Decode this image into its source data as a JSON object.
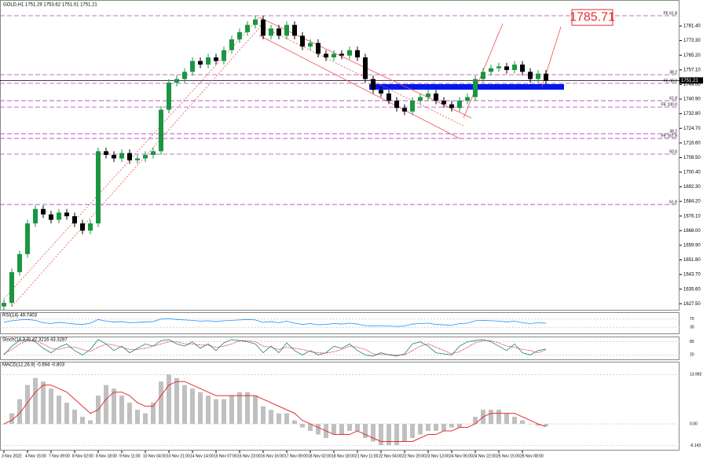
{
  "chart_data": {
    "type": "candlestick",
    "title": "GOLD,H1 1751.29 1753.62 1751.01 1751.21",
    "categories": [
      "3 Nov 2022",
      null,
      null,
      "4 Nov 15:00",
      null,
      null,
      "7 Nov 09:00",
      null,
      null,
      "8 Nov 02:00",
      null,
      null,
      "8 Nov 18:00",
      null,
      null,
      "9 Nov 11:00",
      null,
      null,
      "10 Nov 04:00",
      null,
      null,
      "10 Nov 21:00",
      null,
      null,
      "14 Nov 14:00",
      null,
      null,
      "15 Nov 07:00",
      null,
      null,
      "15 Nov 23:00",
      null,
      null,
      "16 Nov 16:00",
      null,
      null,
      "17 Nov 09:00",
      null,
      null,
      "18 Nov 02:00",
      null,
      null,
      "18 Nov 18:00",
      null,
      null,
      "21 Nov 11:00",
      null,
      null,
      "22 Nov 04:00",
      null,
      null,
      "22 Nov 20:00",
      null,
      null,
      "23 Nov 13:00",
      null,
      null,
      "24 Nov 06:00",
      null,
      null,
      "24 Nov 22:00",
      null,
      null,
      "25 Nov 15:00",
      null,
      null,
      "28 Nov 08:00",
      null,
      null,
      null
    ],
    "open": [
      1626,
      1628,
      1645,
      1655,
      1672,
      1680,
      1677,
      1674,
      1678,
      1676,
      1672,
      1668,
      1672,
      1712,
      1710,
      1708,
      1711,
      1707,
      1708,
      1710,
      1712,
      1735,
      1750,
      1752,
      1756,
      1762,
      1760,
      1764,
      1762,
      1768,
      1774,
      1778,
      1782,
      1785,
      1776,
      1780,
      1776,
      1782,
      1776,
      1770,
      1772,
      1766,
      1764,
      1766,
      1765,
      1768,
      1764,
      1752,
      1746,
      1744,
      1740,
      1736,
      1734,
      1740,
      1742,
      1744,
      1740,
      1738,
      1736,
      1740,
      1742,
      1752,
      1756,
      1758,
      1759,
      1757,
      1760,
      1756,
      1752,
      1755
    ],
    "high": [
      1630,
      1647,
      1657,
      1674,
      1682,
      1682,
      1679,
      1680,
      1680,
      1678,
      1674,
      1674,
      1714,
      1714,
      1712,
      1713,
      1713,
      1710,
      1712,
      1714,
      1737,
      1752,
      1754,
      1758,
      1764,
      1764,
      1766,
      1766,
      1770,
      1776,
      1780,
      1784,
      1787,
      1787,
      1782,
      1782,
      1784,
      1784,
      1778,
      1774,
      1774,
      1768,
      1768,
      1768,
      1770,
      1770,
      1766,
      1754,
      1748,
      1746,
      1742,
      1738,
      1742,
      1744,
      1746,
      1746,
      1742,
      1740,
      1742,
      1744,
      1754,
      1758,
      1760,
      1761,
      1761,
      1762,
      1762,
      1758,
      1757,
      1757
    ],
    "low": [
      1624,
      1626,
      1643,
      1653,
      1670,
      1675,
      1672,
      1672,
      1674,
      1670,
      1666,
      1666,
      1670,
      1708,
      1706,
      1706,
      1705,
      1705,
      1706,
      1708,
      1710,
      1733,
      1748,
      1750,
      1754,
      1758,
      1758,
      1760,
      1760,
      1766,
      1772,
      1776,
      1780,
      1774,
      1774,
      1774,
      1774,
      1774,
      1768,
      1768,
      1764,
      1762,
      1762,
      1763,
      1763,
      1762,
      1750,
      1744,
      1742,
      1738,
      1734,
      1732,
      1732,
      1738,
      1740,
      1738,
      1736,
      1734,
      1734,
      1738,
      1740,
      1750,
      1754,
      1756,
      1755,
      1755,
      1754,
      1750,
      1750,
      1749
    ],
    "close": [
      1628,
      1645,
      1655,
      1672,
      1680,
      1677,
      1674,
      1678,
      1676,
      1672,
      1668,
      1672,
      1712,
      1710,
      1708,
      1711,
      1707,
      1708,
      1710,
      1712,
      1735,
      1750,
      1752,
      1756,
      1762,
      1760,
      1764,
      1762,
      1768,
      1774,
      1778,
      1782,
      1785,
      1776,
      1780,
      1776,
      1782,
      1776,
      1770,
      1772,
      1766,
      1764,
      1766,
      1765,
      1768,
      1764,
      1752,
      1746,
      1744,
      1740,
      1736,
      1734,
      1740,
      1742,
      1744,
      1740,
      1738,
      1736,
      1740,
      1742,
      1752,
      1756,
      1758,
      1759,
      1757,
      1760,
      1756,
      1752,
      1755,
      1751
    ],
    "up_color": "#1a9641",
    "down_color": "#000000",
    "ylim": [
      1623.7,
      1795.8
    ],
    "yticks": [
      {
        "value": 1781.4,
        "label": "1781.40"
      },
      {
        "value": 1773.3,
        "label": "1773.30"
      },
      {
        "value": 1765.2,
        "label": "1765.20"
      },
      {
        "value": 1757.1,
        "label": "1757.10"
      },
      {
        "value": 1749,
        "label": "1749.00"
      },
      {
        "value": 1740.9,
        "label": "1740.90"
      },
      {
        "value": 1732.8,
        "label": "1732.80"
      },
      {
        "value": 1724.7,
        "label": "1724.70"
      },
      {
        "value": 1716.6,
        "label": "1716.60"
      },
      {
        "value": 1708.5,
        "label": "1708.50"
      },
      {
        "value": 1700.4,
        "label": "1700.40"
      },
      {
        "value": 1692.3,
        "label": "1692.30"
      },
      {
        "value": 1684.2,
        "label": "1684.20"
      },
      {
        "value": 1676.1,
        "label": "1676.10"
      },
      {
        "value": 1668,
        "label": "1668.00"
      },
      {
        "value": 1659.9,
        "label": "1659.90"
      },
      {
        "value": 1651.8,
        "label": "1651.80"
      },
      {
        "value": 1643.7,
        "label": "1643.70"
      },
      {
        "value": 1635.6,
        "label": "1635.60"
      },
      {
        "value": 1627.5,
        "label": "1627.50"
      }
    ],
    "levels": [
      {
        "value": 1787.1,
        "label": "FE 61.8"
      },
      {
        "value": 1754.4,
        "label": "38.2"
      },
      {
        "value": 1749.6,
        "label": "FE 38.2"
      },
      {
        "value": 1740,
        "label": "61.8"
      },
      {
        "value": 1736.5,
        "label": "FE 100.0"
      },
      {
        "value": 1721.7,
        "label": "38.2"
      },
      {
        "value": 1719.1,
        "label": "FE 161.8"
      },
      {
        "value": 1710.4,
        "label": "50.0"
      },
      {
        "value": 1682.5,
        "label": "61.8"
      }
    ],
    "level_color": "#b040c0",
    "zone": [
      1746.1,
      1749.2
    ],
    "zone_color": "#0018f0",
    "last_price": 1751.21,
    "target": 1785.71,
    "rsi": {
      "label": "RSI(14) 49.7403",
      "color": "#1e90ff",
      "ylim": [
        0,
        100
      ],
      "yticks": [
        70,
        30
      ],
      "values": [
        55,
        62,
        66,
        68,
        64,
        52,
        48,
        54,
        50,
        46,
        44,
        50,
        68,
        60,
        56,
        58,
        52,
        54,
        56,
        58,
        70,
        72,
        68,
        66,
        64,
        60,
        62,
        58,
        62,
        64,
        66,
        68,
        66,
        54,
        58,
        52,
        60,
        50,
        44,
        48,
        42,
        44,
        48,
        46,
        50,
        46,
        38,
        36,
        38,
        36,
        34,
        36,
        46,
        48,
        50,
        44,
        42,
        40,
        48,
        50,
        62,
        64,
        62,
        60,
        56,
        60,
        52,
        48,
        52,
        49.7
      ]
    },
    "stoch": {
      "label": "Stoch(14,3,3) 47.3216 43.3287",
      "colors": [
        "#208080",
        "#e03030"
      ],
      "ylim": [
        0,
        100
      ],
      "yticks": [
        80,
        20
      ],
      "k": [
        20,
        60,
        85,
        90,
        80,
        50,
        30,
        55,
        70,
        40,
        20,
        45,
        90,
        70,
        40,
        60,
        30,
        50,
        70,
        60,
        85,
        90,
        70,
        60,
        80,
        50,
        70,
        40,
        75,
        90,
        85,
        80,
        70,
        30,
        60,
        30,
        75,
        40,
        20,
        40,
        20,
        30,
        60,
        50,
        70,
        40,
        20,
        15,
        30,
        20,
        15,
        25,
        70,
        80,
        60,
        30,
        25,
        20,
        60,
        80,
        85,
        90,
        80,
        60,
        40,
        70,
        30,
        20,
        40,
        47
      ],
      "d": [
        25,
        45,
        70,
        85,
        85,
        70,
        50,
        45,
        55,
        55,
        45,
        35,
        55,
        70,
        65,
        55,
        45,
        45,
        50,
        60,
        70,
        80,
        80,
        70,
        70,
        65,
        65,
        55,
        60,
        70,
        85,
        85,
        80,
        60,
        55,
        45,
        55,
        50,
        45,
        35,
        30,
        28,
        35,
        45,
        60,
        55,
        45,
        25,
        22,
        22,
        20,
        20,
        40,
        60,
        70,
        55,
        40,
        25,
        35,
        55,
        75,
        85,
        85,
        75,
        60,
        55,
        45,
        40,
        30,
        43.3
      ]
    },
    "macd": {
      "label": "MACD(12,26,9) -0.694 -0.803",
      "colors": [
        "#c0c0c0",
        "#e03030"
      ],
      "ylim": [
        -7.34,
        17.4
      ],
      "yticks": [
        13.992,
        {
          "value": 0,
          "label": "0.00"
        },
        -6.143
      ],
      "hist": [
        0,
        3,
        7,
        11,
        13,
        12,
        10,
        8,
        6,
        4,
        2,
        1,
        8,
        11,
        10,
        8,
        6,
        4,
        3,
        6,
        12,
        14,
        13,
        11,
        10,
        9,
        8,
        7,
        7,
        8,
        9,
        9,
        8,
        5,
        4,
        3,
        3,
        1,
        -1,
        -2,
        -3,
        -4,
        -3,
        -3,
        -2,
        -2,
        -4,
        -5,
        -6,
        -6,
        -6,
        -5,
        -4,
        -3,
        -2,
        -2,
        -2,
        -1,
        -1,
        0,
        2,
        4,
        4,
        4,
        3,
        2,
        1,
        0,
        -0.5,
        -0.694
      ],
      "signal": [
        0,
        1,
        3,
        6,
        9,
        11,
        11,
        10,
        9,
        7,
        5,
        3,
        4,
        7,
        9,
        9,
        8,
        6,
        5,
        5,
        8,
        11,
        12,
        12,
        11,
        10,
        9,
        8,
        8,
        8,
        8,
        8,
        8,
        7,
        6,
        5,
        4,
        3,
        1,
        0,
        -1,
        -2,
        -3,
        -3,
        -3,
        -2,
        -3,
        -4,
        -5,
        -5,
        -5,
        -5,
        -5,
        -4,
        -3,
        -3,
        -2,
        -2,
        -1,
        -1,
        0,
        2,
        3,
        3,
        3,
        3,
        2,
        1,
        0,
        -0.803
      ]
    }
  }
}
